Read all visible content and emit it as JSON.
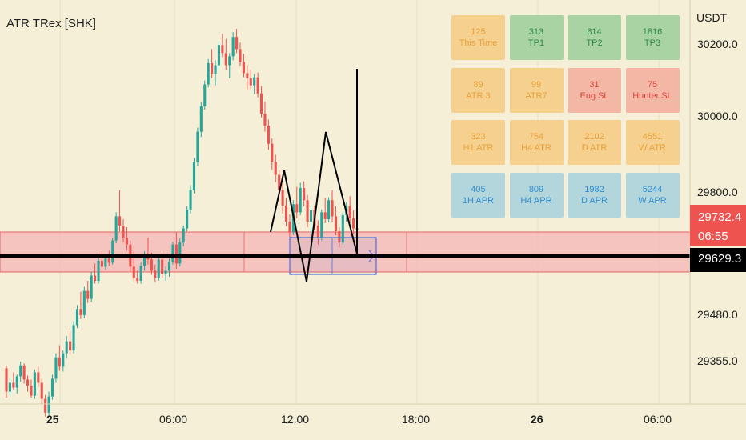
{
  "header": {
    "indicator_title": "ATR TRex [SHK]",
    "currency": "USDT"
  },
  "price_axis": {
    "ticks": [
      "30200.0",
      "30000.0",
      "29800.0",
      "29480.0",
      "29355.0"
    ],
    "last_price": "29732.4",
    "countdown": "06:55",
    "line_price": "29629.3"
  },
  "time_axis": {
    "ticks": [
      {
        "label": "25",
        "bold": true
      },
      {
        "label": "06:00",
        "bold": false
      },
      {
        "label": "12:00",
        "bold": false
      },
      {
        "label": "18:00",
        "bold": false
      },
      {
        "label": "26",
        "bold": true
      },
      {
        "label": "06:00",
        "bold": false
      }
    ]
  },
  "tiles": [
    [
      {
        "value": "125",
        "label": "This Time",
        "bg": "#f5d08f",
        "fg": "#e8a33a"
      },
      {
        "value": "313",
        "label": "TP1",
        "bg": "#a9d3a3",
        "fg": "#2f8a4a"
      },
      {
        "value": "814",
        "label": "TP2",
        "bg": "#a9d3a3",
        "fg": "#2f8a4a"
      },
      {
        "value": "1816",
        "label": "TP3",
        "bg": "#a9d3a3",
        "fg": "#2f8a4a"
      }
    ],
    [
      {
        "value": "89",
        "label": "ATR 3",
        "bg": "#f5d08f",
        "fg": "#e8a33a"
      },
      {
        "value": "99",
        "label": "ATR7",
        "bg": "#f5d08f",
        "fg": "#e8a33a"
      },
      {
        "value": "31",
        "label": "Eng SL",
        "bg": "#f3b7a6",
        "fg": "#e2473f"
      },
      {
        "value": "75",
        "label": "Hunter SL",
        "bg": "#f3b7a6",
        "fg": "#e2473f"
      }
    ],
    [
      {
        "value": "323",
        "label": "H1 ATR",
        "bg": "#f5d08f",
        "fg": "#e8a33a"
      },
      {
        "value": "754",
        "label": "H4 ATR",
        "bg": "#f5d08f",
        "fg": "#e8a33a"
      },
      {
        "value": "2102",
        "label": "D ATR",
        "bg": "#f5d08f",
        "fg": "#e8a33a"
      },
      {
        "value": "4551",
        "label": "W ATR",
        "bg": "#f5d08f",
        "fg": "#e8a33a"
      }
    ],
    [
      {
        "value": "405",
        "label": "1H APR",
        "bg": "#b3d6dc",
        "fg": "#2f8fd1"
      },
      {
        "value": "809",
        "label": "H4 APR",
        "bg": "#b3d6dc",
        "fg": "#2f8fd1"
      },
      {
        "value": "1982",
        "label": "D APR",
        "bg": "#b3d6dc",
        "fg": "#2f8fd1"
      },
      {
        "value": "5244",
        "label": "W APR",
        "bg": "#b3d6dc",
        "fg": "#2f8fd1"
      }
    ]
  ],
  "colors": {
    "up": "#26a69a",
    "down": "#ef5350",
    "zone": "#f5b5b5",
    "zone_edge": "#e06666",
    "box": "#4a6fe3",
    "line": "#000000",
    "last_price_bg": "#ef5350"
  },
  "chart_data": {
    "type": "candlestick",
    "title": "ATR TRex [SHK]",
    "y_axis": {
      "unit": "USDT",
      "ticks": [
        30200,
        30000,
        29800,
        29480,
        29355
      ],
      "range": [
        29270,
        30280
      ]
    },
    "x_axis": {
      "ticks": [
        "25",
        "06:00",
        "12:00",
        "18:00",
        "26",
        "06:00"
      ]
    },
    "last_price": 29732.4,
    "horizontal_line": 29629.3,
    "support_zone": [
      29605,
      29700
    ],
    "candles": [
      [
        29388,
        29395,
        29315,
        29330
      ],
      [
        29330,
        29365,
        29320,
        29352
      ],
      [
        29352,
        29378,
        29335,
        29340
      ],
      [
        29340,
        29372,
        29325,
        29368
      ],
      [
        29368,
        29405,
        29355,
        29395
      ],
      [
        29395,
        29400,
        29350,
        29360
      ],
      [
        29360,
        29370,
        29330,
        29345
      ],
      [
        29345,
        29360,
        29315,
        29320
      ],
      [
        29320,
        29385,
        29312,
        29378
      ],
      [
        29378,
        29392,
        29342,
        29352
      ],
      [
        29352,
        29362,
        29300,
        29312
      ],
      [
        29312,
        29322,
        29268,
        29278
      ],
      [
        29278,
        29330,
        29270,
        29318
      ],
      [
        29318,
        29372,
        29310,
        29362
      ],
      [
        29362,
        29425,
        29352,
        29415
      ],
      [
        29415,
        29445,
        29382,
        29392
      ],
      [
        29392,
        29432,
        29380,
        29425
      ],
      [
        29425,
        29468,
        29412,
        29455
      ],
      [
        29455,
        29480,
        29422,
        29432
      ],
      [
        29432,
        29505,
        29425,
        29495
      ],
      [
        29495,
        29545,
        29488,
        29535
      ],
      [
        29535,
        29578,
        29510,
        29520
      ],
      [
        29520,
        29590,
        29512,
        29580
      ],
      [
        29580,
        29605,
        29550,
        29560
      ],
      [
        29560,
        29628,
        29552,
        29618
      ],
      [
        29618,
        29648,
        29598,
        29605
      ],
      [
        29605,
        29668,
        29598,
        29655
      ],
      [
        29655,
        29678,
        29625,
        29640
      ],
      [
        29640,
        29668,
        29632,
        29660
      ],
      [
        29660,
        29680,
        29642,
        29650
      ],
      [
        29650,
        29712,
        29645,
        29705
      ],
      [
        29705,
        29775,
        29698,
        29765
      ],
      [
        29765,
        29830,
        29728,
        29742
      ],
      [
        29742,
        29758,
        29700,
        29712
      ],
      [
        29712,
        29738,
        29680,
        29695
      ],
      [
        29695,
        29705,
        29628,
        29640
      ],
      [
        29640,
        29678,
        29602,
        29612
      ],
      [
        29612,
        29630,
        29598,
        29605
      ],
      [
        29605,
        29650,
        29598,
        29642
      ],
      [
        29642,
        29678,
        29630,
        29668
      ],
      [
        29668,
        29712,
        29645,
        29658
      ],
      [
        29658,
        29675,
        29620,
        29630
      ],
      [
        29630,
        29645,
        29602,
        29612
      ],
      [
        29612,
        29665,
        29605,
        29658
      ],
      [
        29658,
        29675,
        29612,
        29622
      ],
      [
        29622,
        29640,
        29605,
        29630
      ],
      [
        29630,
        29660,
        29615,
        29652
      ],
      [
        29652,
        29702,
        29645,
        29695
      ],
      [
        29695,
        29725,
        29635,
        29648
      ],
      [
        29648,
        29710,
        29640,
        29700
      ],
      [
        29700,
        29742,
        29690,
        29735
      ],
      [
        29735,
        29790,
        29728,
        29782
      ],
      [
        29782,
        29842,
        29772,
        29830
      ],
      [
        29830,
        29910,
        29822,
        29900
      ],
      [
        29900,
        29985,
        29890,
        29975
      ],
      [
        29975,
        30048,
        29962,
        30038
      ],
      [
        30038,
        30102,
        30030,
        30092
      ],
      [
        30092,
        30155,
        30085,
        30145
      ],
      [
        30145,
        30180,
        30108,
        30118
      ],
      [
        30118,
        30152,
        30090,
        30140
      ],
      [
        30140,
        30200,
        30130,
        30190
      ],
      [
        30190,
        30218,
        30160,
        30170
      ],
      [
        30170,
        30205,
        30128,
        30140
      ],
      [
        30140,
        30170,
        30108,
        30162
      ],
      [
        30162,
        30222,
        30152,
        30210
      ],
      [
        30210,
        30230,
        30170,
        30180
      ],
      [
        30180,
        30196,
        30138,
        30148
      ],
      [
        30148,
        30168,
        30110,
        30120
      ],
      [
        30120,
        30140,
        30080,
        30108
      ],
      [
        30108,
        30128,
        30080,
        30090
      ],
      [
        30090,
        30118,
        30068,
        30110
      ],
      [
        30110,
        30122,
        30060,
        30070
      ],
      [
        30070,
        30088,
        30010,
        30020
      ],
      [
        30020,
        30050,
        29975,
        29990
      ],
      [
        29990,
        30005,
        29930,
        29945
      ],
      [
        29945,
        29958,
        29880,
        29900
      ],
      [
        29900,
        29918,
        29850,
        29868
      ],
      [
        29868,
        29880,
        29818,
        29830
      ],
      [
        29830,
        29845,
        29772,
        29792
      ],
      [
        29792,
        29810,
        29740,
        29752
      ],
      [
        29752,
        29770,
        29700,
        29725
      ],
      [
        29725,
        29805,
        29718,
        29795
      ],
      [
        29795,
        29838,
        29760,
        29775
      ],
      [
        29775,
        29848,
        29768,
        29835
      ],
      [
        29835,
        29852,
        29790,
        29805
      ],
      [
        29805,
        29818,
        29738,
        29752
      ],
      [
        29752,
        29790,
        29720,
        29780
      ],
      [
        29780,
        29792,
        29730,
        29742
      ],
      [
        29742,
        29755,
        29695,
        29712
      ],
      [
        29712,
        29782,
        29705,
        29775
      ],
      [
        29775,
        29810,
        29748,
        29758
      ],
      [
        29758,
        29812,
        29750,
        29805
      ],
      [
        29805,
        29830,
        29752,
        29765
      ],
      [
        29765,
        29790,
        29718,
        29728
      ],
      [
        29728,
        29738,
        29688,
        29700
      ],
      [
        29700,
        29775,
        29694,
        29768
      ],
      [
        29768,
        29800,
        29752,
        29790
      ],
      [
        29790,
        29815,
        29748,
        29760
      ],
      [
        29760,
        29780,
        29720,
        29735
      ],
      [
        29735,
        29775,
        29700,
        29732
      ]
    ]
  }
}
